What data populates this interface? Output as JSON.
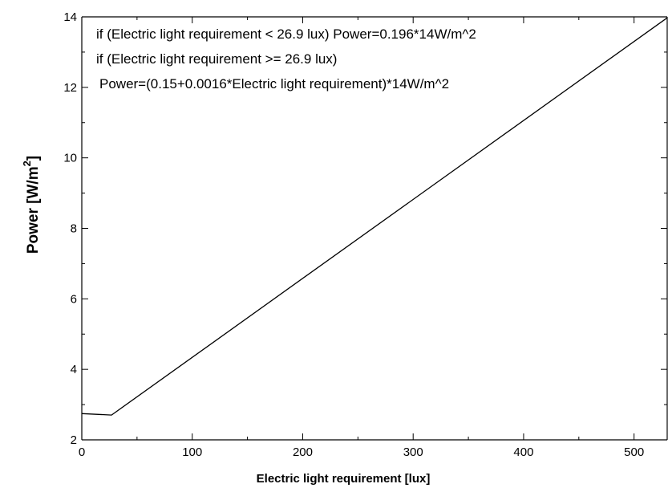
{
  "chart_data": {
    "type": "line",
    "title": "",
    "xlabel": "Electric light requirement  [lux]",
    "ylabel": {
      "main": "Power  [W/m",
      "superscript": "2",
      "close": "]"
    },
    "xlim": [
      0,
      530
    ],
    "ylim": [
      2,
      14
    ],
    "xticks": [
      0,
      100,
      200,
      300,
      400,
      500
    ],
    "yticks": [
      2,
      4,
      6,
      8,
      10,
      12,
      14
    ],
    "xtick_labels": [
      "0",
      "100",
      "200",
      "300",
      "400",
      "500"
    ],
    "ytick_labels": [
      "2",
      "4",
      "6",
      "8",
      "10",
      "12",
      "14"
    ],
    "grid": false,
    "legend": "none",
    "annotations": [
      "if (Electric light requirement < 26.9 lux) Power=0.196*14W/m^2",
      "if (Electric light requirement >= 26.9 lux)",
      "Power=(0.15+0.0016*Electric light requirement)*14W/m^2"
    ],
    "series": [
      {
        "x": [
          0,
          26.9,
          530
        ],
        "y": [
          2.744,
          2.7025,
          13.972
        ]
      }
    ],
    "line_color": "#000000"
  }
}
